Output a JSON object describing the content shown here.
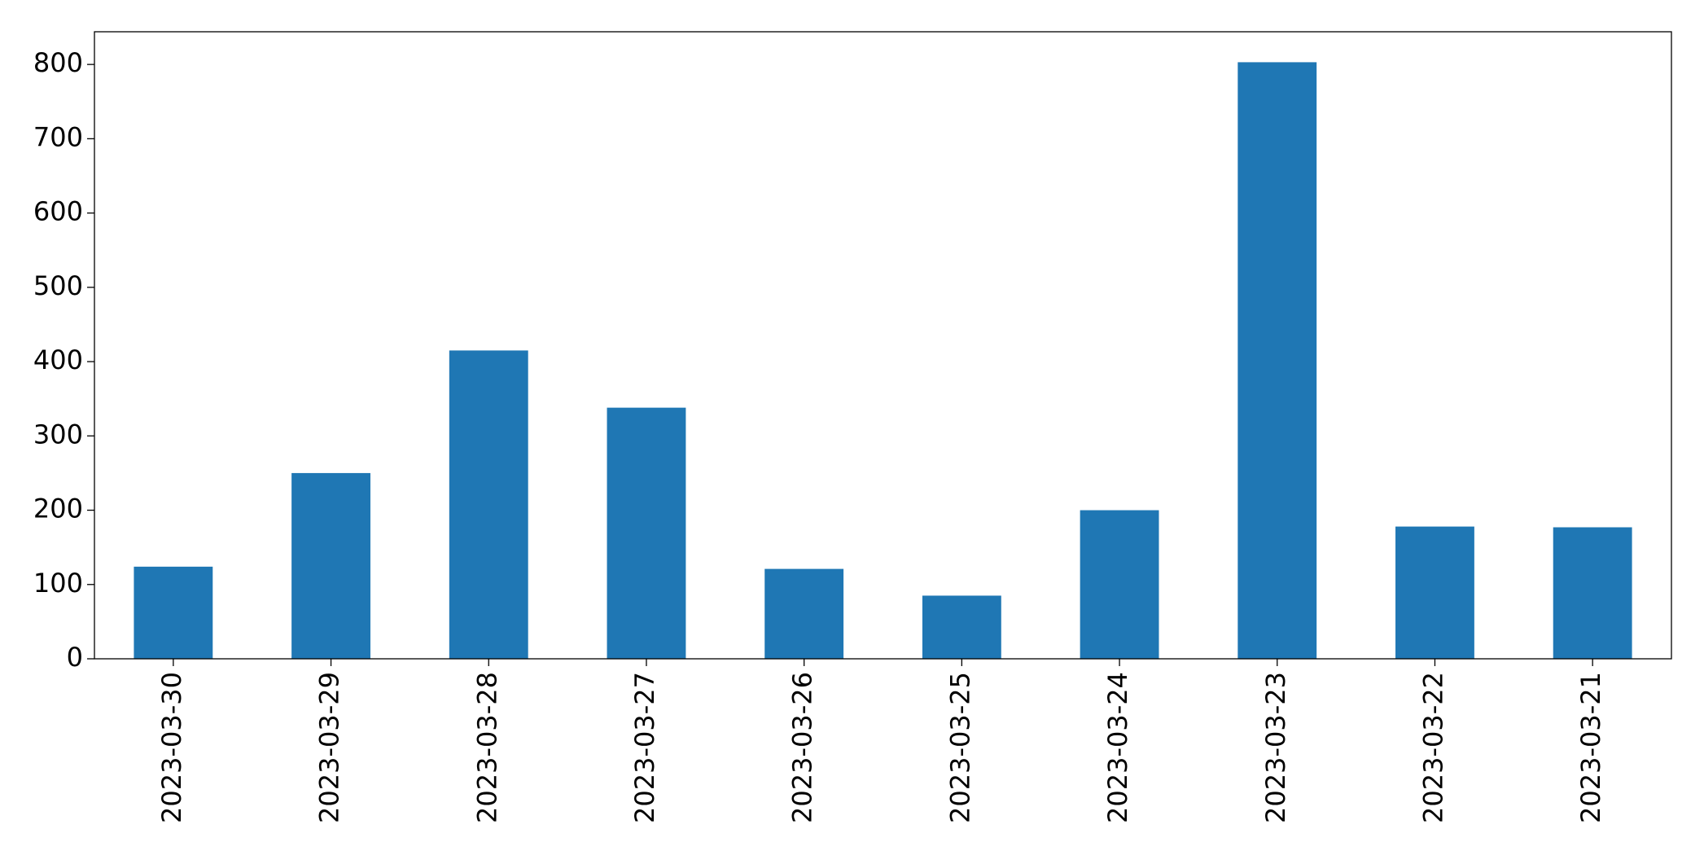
{
  "chart_data": {
    "type": "bar",
    "categories": [
      "2023-03-30",
      "2023-03-29",
      "2023-03-28",
      "2023-03-27",
      "2023-03-26",
      "2023-03-25",
      "2023-03-24",
      "2023-03-23",
      "2023-03-22",
      "2023-03-21"
    ],
    "values": [
      124,
      250,
      415,
      338,
      121,
      85,
      200,
      803,
      178,
      177
    ],
    "color": "#1f77b4",
    "ylim": [
      0,
      844
    ],
    "yticks": [
      0,
      100,
      200,
      300,
      400,
      500,
      600,
      700,
      800
    ],
    "grid": false
  }
}
